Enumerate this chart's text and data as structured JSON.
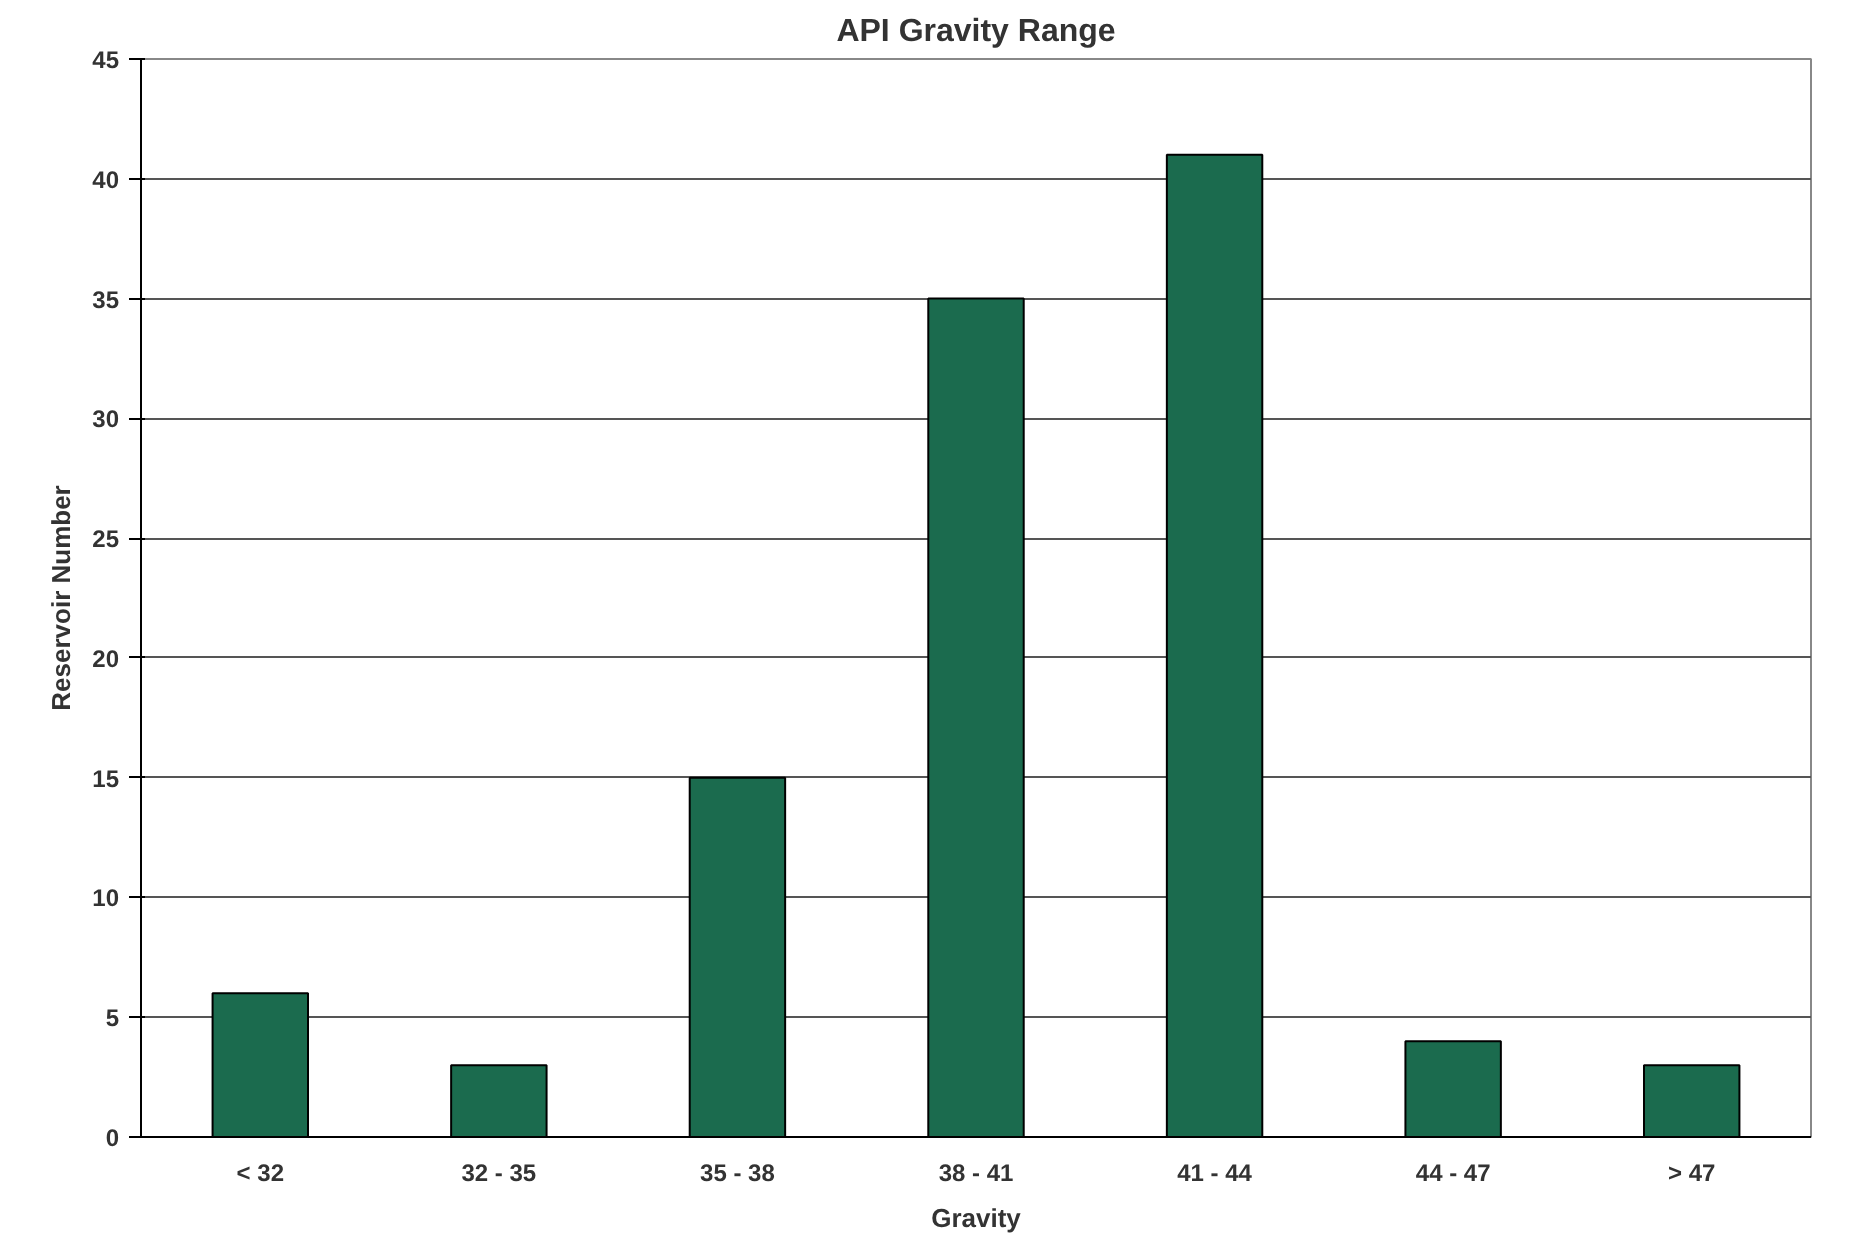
{
  "chart_data": {
    "type": "bar",
    "title": "API Gravity Range",
    "xlabel": "Gravity",
    "ylabel": "Reservoir Number",
    "categories": [
      "< 32",
      "32 - 35",
      "35 - 38",
      "38 - 41",
      "41 - 44",
      "44 - 47",
      "> 47"
    ],
    "values": [
      6,
      3,
      15,
      35,
      41,
      4,
      3
    ],
    "color": "#1b6b4e",
    "ylim": [
      0,
      45
    ],
    "yticks": [
      0,
      5,
      10,
      15,
      20,
      25,
      30,
      35,
      40,
      45
    ],
    "grid": "y"
  }
}
